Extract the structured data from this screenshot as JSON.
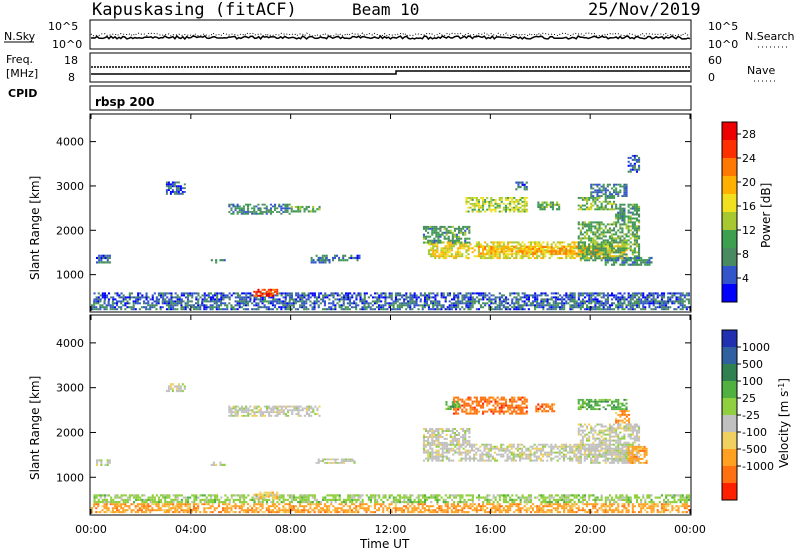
{
  "header": {
    "station": "Kapuskasing (fitACF)",
    "beam": "Beam 10",
    "date": "25/Nov/2019"
  },
  "strips": {
    "noise": {
      "left_label": "N.Sky",
      "right_label": "N.Search",
      "left_ticks": [
        "10^5",
        "10^0"
      ],
      "right_ticks": [
        "10^5",
        "10^0"
      ]
    },
    "freq": {
      "left_label_1": "Freq.",
      "left_label_2": "[MHz]",
      "right_label": "Nave",
      "left_ticks": [
        "18",
        "8"
      ],
      "right_ticks": [
        "60",
        "0"
      ]
    },
    "cpid": {
      "label": "CPID",
      "program": "rbsp 200"
    }
  },
  "chart_data": [
    {
      "type": "heatmap",
      "name": "power",
      "ylabel": "Slant Range [km]",
      "xlabel": "",
      "ylim": [
        180,
        4600
      ],
      "y_ticks": [
        "1000",
        "2000",
        "3000",
        "4000"
      ],
      "xlim_hours": [
        0,
        24
      ],
      "colorbar": {
        "label": "Power [dB]",
        "ticks": [
          "4",
          "8",
          "12",
          "16",
          "20",
          "24",
          "28"
        ],
        "range": [
          0,
          30
        ],
        "colors": [
          "#0000ff",
          "#3355cc",
          "#4a8a60",
          "#3da050",
          "#a8c830",
          "#f0e020",
          "#ffb000",
          "#ff7800",
          "#ff3000",
          "#ee0000"
        ]
      },
      "regions": [
        {
          "t0": 0.0,
          "t1": 24.0,
          "r0": 200,
          "r1": 420,
          "level": 6
        },
        {
          "t0": 0.1,
          "t1": 24.0,
          "r0": 420,
          "r1": 600,
          "level": 5
        },
        {
          "t0": 6.5,
          "t1": 7.5,
          "r0": 500,
          "r1": 680,
          "level": 26
        },
        {
          "t0": 0.2,
          "t1": 0.8,
          "r0": 1250,
          "r1": 1450,
          "level": 6
        },
        {
          "t0": 4.8,
          "t1": 5.4,
          "r0": 1250,
          "r1": 1350,
          "level": 7
        },
        {
          "t0": 8.8,
          "t1": 9.6,
          "r0": 1250,
          "r1": 1400,
          "level": 7
        },
        {
          "t0": 9.0,
          "t1": 10.8,
          "r0": 1300,
          "r1": 1450,
          "level": 6
        },
        {
          "t0": 3.0,
          "t1": 3.8,
          "r0": 2800,
          "r1": 3100,
          "level": 5
        },
        {
          "t0": 5.5,
          "t1": 8.0,
          "r0": 2350,
          "r1": 2600,
          "level": 8
        },
        {
          "t0": 8.0,
          "t1": 9.2,
          "r0": 2400,
          "r1": 2550,
          "level": 10
        },
        {
          "t0": 13.5,
          "t1": 21.5,
          "r0": 1350,
          "r1": 1750,
          "level": 16
        },
        {
          "t0": 15.5,
          "t1": 20.5,
          "r0": 1450,
          "r1": 1650,
          "level": 20
        },
        {
          "t0": 13.3,
          "t1": 15.2,
          "r0": 1700,
          "r1": 2100,
          "level": 9
        },
        {
          "t0": 19.5,
          "t1": 22.0,
          "r0": 1300,
          "r1": 2200,
          "level": 10
        },
        {
          "t0": 20.5,
          "t1": 22.5,
          "r0": 1200,
          "r1": 1400,
          "level": 8
        },
        {
          "t0": 15.0,
          "t1": 17.5,
          "r0": 2400,
          "r1": 2750,
          "level": 14
        },
        {
          "t0": 17.8,
          "t1": 18.8,
          "r0": 2450,
          "r1": 2650,
          "level": 11
        },
        {
          "t0": 19.5,
          "t1": 21.0,
          "r0": 2450,
          "r1": 2750,
          "level": 12
        },
        {
          "t0": 21.0,
          "t1": 22.0,
          "r0": 2200,
          "r1": 2600,
          "level": 9
        },
        {
          "t0": 17.0,
          "t1": 17.5,
          "r0": 2900,
          "r1": 3100,
          "level": 6
        },
        {
          "t0": 20.0,
          "t1": 21.5,
          "r0": 2750,
          "r1": 3050,
          "level": 7
        },
        {
          "t0": 21.5,
          "t1": 22.0,
          "r0": 3300,
          "r1": 3700,
          "level": 5
        }
      ]
    },
    {
      "type": "heatmap",
      "name": "velocity",
      "ylabel": "Slant Range [km]",
      "xlabel": "Time UT",
      "ylim": [
        180,
        4600
      ],
      "y_ticks": [
        "1000",
        "2000",
        "3000",
        "4000"
      ],
      "x_ticks": [
        "00:00",
        "04:00",
        "08:00",
        "12:00",
        "16:00",
        "20:00",
        "00:00"
      ],
      "xlim_hours": [
        0,
        24
      ],
      "colorbar": {
        "label": "Velocity [m s^-1]",
        "ticks": [
          "1000",
          "500",
          "100",
          "25",
          "-25",
          "-100",
          "-500",
          "-1000"
        ],
        "colors": [
          "#2030b0",
          "#3060a0",
          "#308050",
          "#50b040",
          "#90d040",
          "#c0c0c0",
          "#f0d060",
          "#ffa020",
          "#ff7010",
          "#ff2000"
        ]
      },
      "regions": [
        {
          "t0": 0.0,
          "t1": 24.0,
          "r0": 200,
          "r1": 420,
          "level": 7
        },
        {
          "t0": 0.1,
          "t1": 24.0,
          "r0": 420,
          "r1": 620,
          "level": 4
        },
        {
          "t0": 6.5,
          "t1": 7.5,
          "r0": 500,
          "r1": 680,
          "level": 6
        },
        {
          "t0": 0.2,
          "t1": 0.8,
          "r0": 1250,
          "r1": 1400,
          "level": 5
        },
        {
          "t0": 4.8,
          "t1": 5.4,
          "r0": 1250,
          "r1": 1350,
          "level": 5
        },
        {
          "t0": 9.0,
          "t1": 10.6,
          "r0": 1300,
          "r1": 1420,
          "level": 5
        },
        {
          "t0": 3.0,
          "t1": 3.8,
          "r0": 2900,
          "r1": 3100,
          "level": 5
        },
        {
          "t0": 5.5,
          "t1": 9.2,
          "r0": 2350,
          "r1": 2600,
          "level": 5
        },
        {
          "t0": 13.3,
          "t1": 21.5,
          "r0": 1350,
          "r1": 1750,
          "level": 5
        },
        {
          "t0": 13.3,
          "t1": 15.2,
          "r0": 1700,
          "r1": 2100,
          "level": 5
        },
        {
          "t0": 19.5,
          "t1": 22.0,
          "r0": 1300,
          "r1": 2200,
          "level": 5
        },
        {
          "t0": 21.5,
          "t1": 22.3,
          "r0": 1300,
          "r1": 1700,
          "level": 7
        },
        {
          "t0": 14.5,
          "t1": 17.5,
          "r0": 2400,
          "r1": 2800,
          "level": 8
        },
        {
          "t0": 17.8,
          "t1": 18.6,
          "r0": 2450,
          "r1": 2650,
          "level": 8
        },
        {
          "t0": 19.5,
          "t1": 21.5,
          "r0": 2500,
          "r1": 2750,
          "level": 3
        },
        {
          "t0": 14.2,
          "t1": 14.8,
          "r0": 2500,
          "r1": 2700,
          "level": 3
        },
        {
          "t0": 21.0,
          "t1": 21.6,
          "r0": 2200,
          "r1": 2500,
          "level": 7
        }
      ]
    }
  ]
}
